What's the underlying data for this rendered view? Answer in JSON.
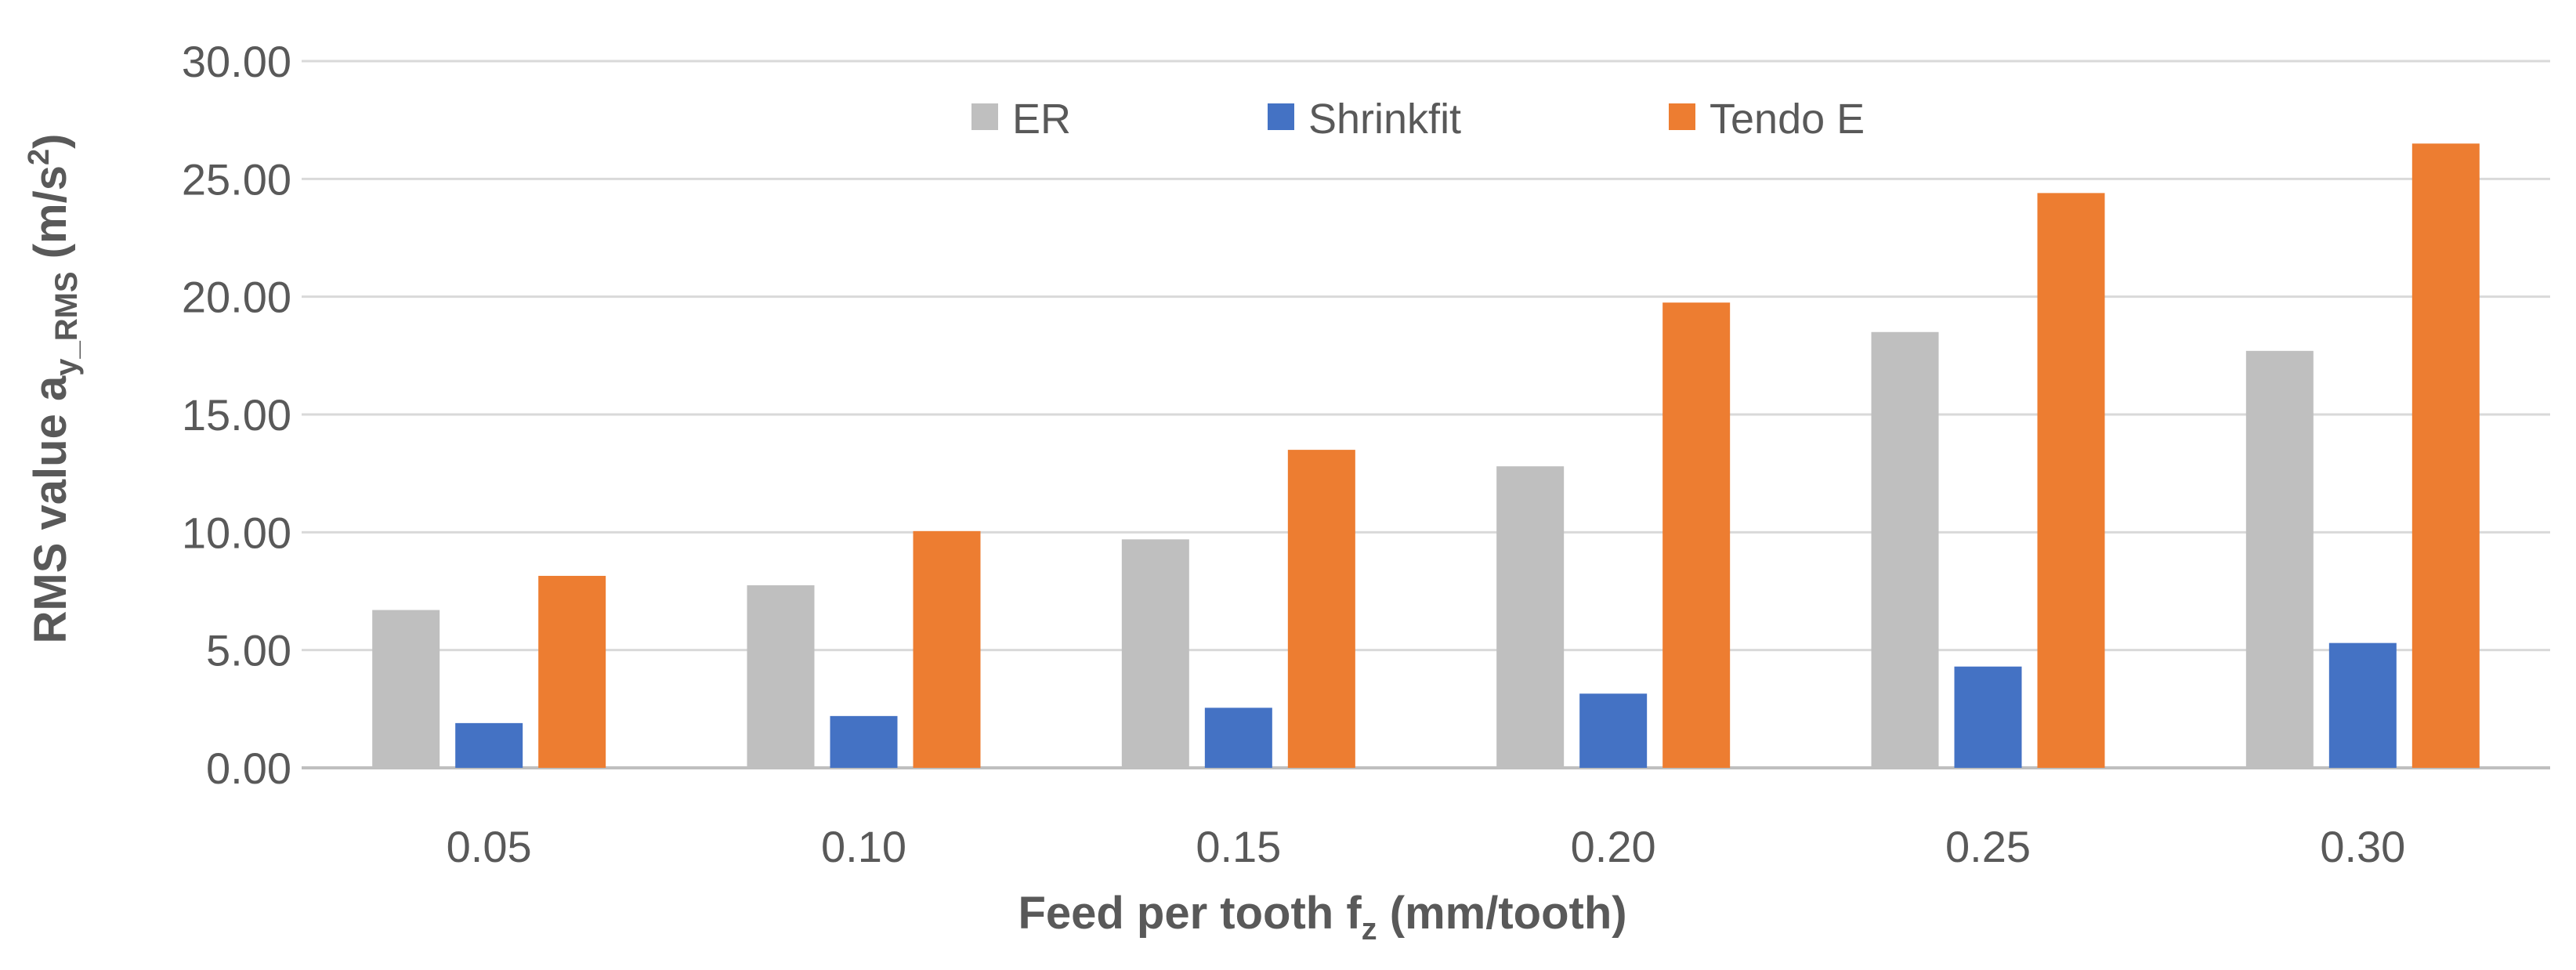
{
  "chart_data": {
    "type": "bar",
    "title": "",
    "categories": [
      "0.05",
      "0.10",
      "0.15",
      "0.20",
      "0.25",
      "0.30"
    ],
    "series": [
      {
        "name": "ER",
        "color": "#bfbfbf",
        "values": [
          6.7,
          7.75,
          9.7,
          12.8,
          18.5,
          17.7
        ]
      },
      {
        "name": "Shrinkfit",
        "color": "#4472c4",
        "values": [
          1.9,
          2.2,
          2.55,
          3.15,
          4.3,
          5.3
        ]
      },
      {
        "name": "Tendo E",
        "color": "#ed7d31",
        "values": [
          8.15,
          10.05,
          13.5,
          19.75,
          24.4,
          26.5
        ]
      }
    ],
    "ylim": [
      0,
      30
    ],
    "yticks": [
      "0.00",
      "5.00",
      "10.00",
      "15.00",
      "20.00",
      "25.00",
      "30.00"
    ],
    "ytick_values": [
      0,
      5,
      10,
      15,
      20,
      25,
      30
    ],
    "ylabel": {
      "main": "RMS value a",
      "sub": "y_RMS",
      "unit_open": " (m/s",
      "sup": "2",
      "unit_close": ")"
    },
    "xlabel": {
      "main": "Feed per tooth f",
      "sub": "z",
      "unit": " (mm/tooth)"
    },
    "grid": true,
    "legend_position": "top"
  }
}
